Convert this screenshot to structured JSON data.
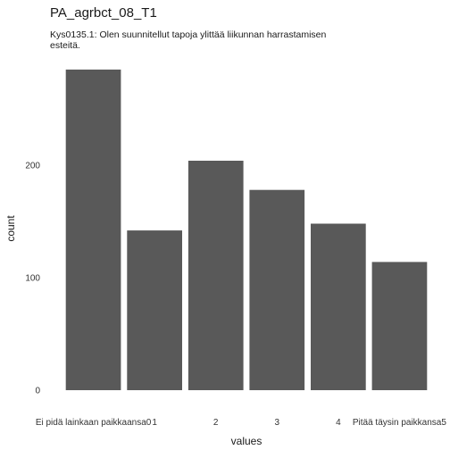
{
  "chart_data": {
    "type": "bar",
    "title": "PA_agrbct_08_T1",
    "subtitle": [
      "Kys0135.1: Olen suunnitellut tapoja ylittää liikunnan harrastamisen",
      "esteitä."
    ],
    "xlabel": "values",
    "ylabel": "count",
    "categories": [
      "Ei pidä lainkaan paikkaansa0",
      "1",
      "2",
      "3",
      "4",
      "Pitää täysin paikkansa5"
    ],
    "values": [
      285,
      142,
      204,
      178,
      148,
      114
    ],
    "yticks": [
      0,
      100,
      200
    ],
    "ylim": [
      0,
      300
    ],
    "grid": false,
    "bar_color": "#595959"
  }
}
